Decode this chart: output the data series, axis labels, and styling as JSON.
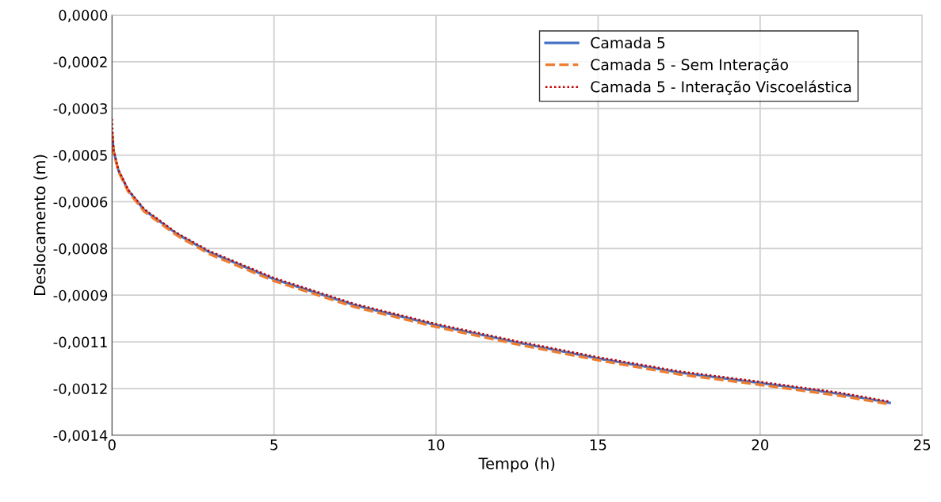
{
  "chart_data": {
    "type": "line",
    "xlabel": "Tempo (h)",
    "ylabel": "Deslocamento (m)",
    "xlim": [
      0,
      25
    ],
    "xticks": [
      0,
      5,
      10,
      15,
      20,
      25
    ],
    "ylim": [
      -0.0014,
      0
    ],
    "yticks": [
      {
        "value": 0,
        "label": "0,0000"
      },
      {
        "value": -0.00015556,
        "label": "-0,0002"
      },
      {
        "value": -0.00031111,
        "label": "-0,0003"
      },
      {
        "value": -0.00046667,
        "label": "-0,0005"
      },
      {
        "value": -0.00062222,
        "label": "-0,0006"
      },
      {
        "value": -0.00077778,
        "label": "-0,0008"
      },
      {
        "value": -0.00093333,
        "label": "-0,0009"
      },
      {
        "value": -0.00108889,
        "label": "-0,0011"
      },
      {
        "value": -0.00124444,
        "label": "-0,0012"
      },
      {
        "value": -0.0014,
        "label": "-0,0014"
      }
    ],
    "x": [
      0,
      0.05,
      0.2,
      0.5,
      1,
      2,
      3,
      5,
      7.5,
      10,
      12.5,
      15,
      17.5,
      20,
      22.5,
      24
    ],
    "grid": true,
    "legend": "top right",
    "series": [
      {
        "name": "Camada 5",
        "color": "#4472c4",
        "line_style": "solid",
        "values": [
          -0.000391,
          -0.000452,
          -0.000518,
          -0.000584,
          -0.00065,
          -0.000729,
          -0.00079,
          -0.00088,
          -0.000967,
          -0.001033,
          -0.001091,
          -0.001144,
          -0.001191,
          -0.001226,
          -0.001263,
          -0.001292
        ]
      },
      {
        "name": "Camada 5 - Sem Interação",
        "color": "#ed7d31",
        "line_style": "dashed",
        "values": [
          -0.000391,
          -0.000455,
          -0.000521,
          -0.000588,
          -0.000655,
          -0.000734,
          -0.000796,
          -0.000886,
          -0.000973,
          -0.001039,
          -0.001097,
          -0.00115,
          -0.001197,
          -0.001232,
          -0.001269,
          -0.001297
        ]
      },
      {
        "name": "Camada 5 - Interação Viscoelástica",
        "color": "#c00000",
        "line_style": "dotted",
        "values": [
          -0.000346,
          -0.00045,
          -0.000516,
          -0.000582,
          -0.000647,
          -0.000726,
          -0.000786,
          -0.000876,
          -0.000963,
          -0.001029,
          -0.001087,
          -0.00114,
          -0.001187,
          -0.001222,
          -0.001259,
          -0.001288
        ]
      }
    ]
  }
}
